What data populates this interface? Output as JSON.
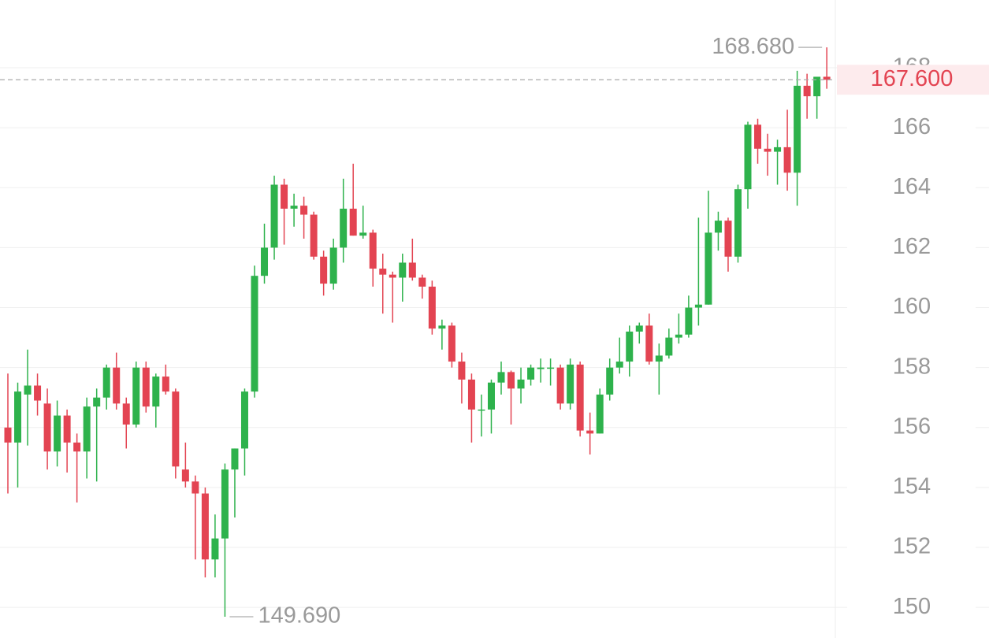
{
  "chart_data": {
    "type": "candlestick",
    "open": [
      156.0,
      155.5,
      157.1,
      157.4,
      156.8,
      155.2,
      156.4,
      155.5,
      155.2,
      156.7,
      157.0,
      158.0,
      156.8,
      156.1,
      158.0,
      156.7,
      157.7,
      157.2,
      154.6,
      154.2,
      153.8,
      151.6,
      152.3,
      154.6,
      155.3,
      157.2,
      161.06,
      162.0,
      164.1,
      163.3,
      163.4,
      163.1,
      161.7,
      160.8,
      162.0,
      163.3,
      162.4,
      162.5,
      161.3,
      161.1,
      161.0,
      161.5,
      161.0,
      160.7,
      159.3,
      159.4,
      158.2,
      157.6,
      156.6,
      156.6,
      157.5,
      157.85,
      157.3,
      157.6,
      157.95,
      158.0,
      158.0,
      156.8,
      158.1,
      155.9,
      155.8,
      157.1,
      158.0,
      158.2,
      159.2,
      159.4,
      158.2,
      158.4,
      159.0,
      159.1,
      160.0,
      160.1,
      162.5,
      162.9,
      161.7,
      163.95,
      166.1,
      165.3,
      165.2,
      165.35,
      164.5,
      167.4,
      167.05,
      167.7
    ],
    "high": [
      157.8,
      157.5,
      158.6,
      157.8,
      157.3,
      156.9,
      156.6,
      155.8,
      157.0,
      157.3,
      158.1,
      158.5,
      157.0,
      158.2,
      158.2,
      157.8,
      158.1,
      157.3,
      155.5,
      154.4,
      154.0,
      153.1,
      154.8,
      155.3,
      157.3,
      161.4,
      162.8,
      164.4,
      164.3,
      163.8,
      163.7,
      163.2,
      161.9,
      162.3,
      164.3,
      164.8,
      163.4,
      162.6,
      161.8,
      161.2,
      161.8,
      162.3,
      161.1,
      160.9,
      159.6,
      159.5,
      158.5,
      157.8,
      157.1,
      157.6,
      158.2,
      157.9,
      158.0,
      158.1,
      158.3,
      158.3,
      158.1,
      158.3,
      158.2,
      156.5,
      157.3,
      158.3,
      159.0,
      159.4,
      159.5,
      159.8,
      158.8,
      159.3,
      159.8,
      160.4,
      163.0,
      163.9,
      163.2,
      163.0,
      164.1,
      166.2,
      166.3,
      165.8,
      165.6,
      166.6,
      167.9,
      167.8,
      167.6,
      168.68
    ],
    "low": [
      153.8,
      154.0,
      155.4,
      156.4,
      154.6,
      154.7,
      154.5,
      153.5,
      154.3,
      154.2,
      156.6,
      156.6,
      155.3,
      156.0,
      156.5,
      156.0,
      157.1,
      154.3,
      154.0,
      151.6,
      151.0,
      151.0,
      149.69,
      153.0,
      154.4,
      157.0,
      160.8,
      161.6,
      162.1,
      162.7,
      162.3,
      161.6,
      160.4,
      160.6,
      161.5,
      162.4,
      162.3,
      160.7,
      159.8,
      159.5,
      160.2,
      160.9,
      160.3,
      159.1,
      158.6,
      158.0,
      156.8,
      155.5,
      155.7,
      155.8,
      157.1,
      156.1,
      156.8,
      157.4,
      157.5,
      157.4,
      156.6,
      156.6,
      155.7,
      155.1,
      155.8,
      156.9,
      157.8,
      157.7,
      158.8,
      158.1,
      157.1,
      158.3,
      158.8,
      159.0,
      159.4,
      160.1,
      161.9,
      161.2,
      161.5,
      163.3,
      164.8,
      164.4,
      164.1,
      163.9,
      163.4,
      166.3,
      166.3,
      167.3
    ],
    "close": [
      155.5,
      157.2,
      157.4,
      156.9,
      155.2,
      156.4,
      155.5,
      155.2,
      156.7,
      157.0,
      158.0,
      156.8,
      156.1,
      158.0,
      156.7,
      157.7,
      157.2,
      154.7,
      154.2,
      153.8,
      151.6,
      152.3,
      154.6,
      155.3,
      157.2,
      161.06,
      162.0,
      164.1,
      163.3,
      163.4,
      163.1,
      161.7,
      160.8,
      162.0,
      163.3,
      162.4,
      162.5,
      161.3,
      161.1,
      161.0,
      161.5,
      161.0,
      160.7,
      159.3,
      159.4,
      158.2,
      157.6,
      156.6,
      156.6,
      157.5,
      157.85,
      157.3,
      157.6,
      158.0,
      158.0,
      158.0,
      156.8,
      158.1,
      155.9,
      155.8,
      157.1,
      158.0,
      158.2,
      159.2,
      159.4,
      158.2,
      158.4,
      159.0,
      159.1,
      160.0,
      160.1,
      162.5,
      162.9,
      161.7,
      163.95,
      166.1,
      165.3,
      165.2,
      165.35,
      164.5,
      167.4,
      167.05,
      167.7,
      167.6
    ],
    "up_color": "#2eb24c",
    "down_color": "#e34452",
    "ylim": [
      148.98,
      170.26
    ],
    "yticks": [
      150,
      152,
      154,
      156,
      158,
      160,
      162,
      164,
      166,
      168
    ],
    "grid": true,
    "high_marker": {
      "value": 168.68,
      "label": "168.680"
    },
    "low_marker": {
      "value": 149.69,
      "label": "149.690"
    },
    "last_price": {
      "value": 167.6,
      "label": "167.600"
    }
  }
}
